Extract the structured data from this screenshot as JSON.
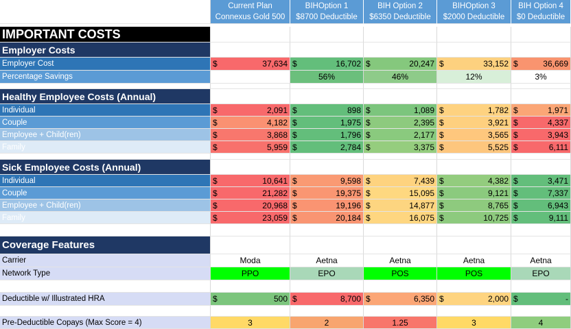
{
  "plans": [
    {
      "line1": "Current Plan",
      "line2": "Connexus Gold 500"
    },
    {
      "line1": "BIHOption 1",
      "line2": "$8700 Deductible"
    },
    {
      "line1": "BIH Option 2",
      "line2": "$6350 Deductible"
    },
    {
      "line1": "BIHOption 3",
      "line2": "$2000 Deductible"
    },
    {
      "line1": "BIH Option 4",
      "line2": "$0 Deductible"
    }
  ],
  "currency_symbol": "$",
  "sections": {
    "important": "IMPORTANT COSTS",
    "employer": "Employer Costs",
    "healthy": "Healthy Employee Costs (Annual)",
    "sick": "Sick Employee Costs (Annual)",
    "coverage": "Coverage Features"
  },
  "employer_cost": {
    "label": "Employer Cost",
    "values": [
      "37,634",
      "16,702",
      "20,247",
      "33,152",
      "36,669"
    ],
    "colors": [
      "#f8696b",
      "#63be7b",
      "#85c87d",
      "#fdd17f",
      "#f9946f"
    ]
  },
  "percentage_savings": {
    "label": "Percentage Savings",
    "values": [
      "",
      "56%",
      "46%",
      "12%",
      "3%"
    ],
    "colors": [
      "#ffffff",
      "#6bbf7c",
      "#8ecb89",
      "#d8efd9",
      "#ffffff"
    ]
  },
  "healthy_rows": [
    {
      "label": "Individual",
      "values": [
        "2,091",
        "898",
        "1,089",
        "1,782",
        "1,971"
      ],
      "colors": [
        "#f8696b",
        "#63be7b",
        "#7cc57d",
        "#fed280",
        "#fba676"
      ]
    },
    {
      "label": "Couple",
      "values": [
        "4,182",
        "1,975",
        "2,395",
        "3,921",
        "4,337"
      ],
      "colors": [
        "#fa9172",
        "#63be7b",
        "#8dca7e",
        "#fed07f",
        "#f8696b"
      ]
    },
    {
      "label": "Employee + Child(ren)",
      "values": [
        "3,868",
        "1,796",
        "2,177",
        "3,565",
        "3,943"
      ],
      "colors": [
        "#f8776d",
        "#63be7b",
        "#8aca7e",
        "#fec77d",
        "#f8696b"
      ]
    },
    {
      "label": "Family",
      "values": [
        "5,959",
        "2,784",
        "3,375",
        "5,525",
        "6,111"
      ],
      "colors": [
        "#f8716c",
        "#63be7b",
        "#95cd7e",
        "#fdc67d",
        "#f8696b"
      ]
    }
  ],
  "sick_rows": [
    {
      "label": "Individual",
      "values": [
        "10,641",
        "9,598",
        "7,439",
        "4,382",
        "3,471"
      ],
      "colors": [
        "#f8696b",
        "#fa9a73",
        "#fed37f",
        "#93cc7e",
        "#63be7b"
      ]
    },
    {
      "label": "Couple",
      "values": [
        "21,282",
        "19,375",
        "15,095",
        "9,121",
        "7,337"
      ],
      "colors": [
        "#f8696b",
        "#fa9672",
        "#fed880",
        "#8bca7e",
        "#63be7b"
      ]
    },
    {
      "label": "Employee + Child(ren)",
      "values": [
        "20,968",
        "19,196",
        "14,877",
        "8,765",
        "6,943"
      ],
      "colors": [
        "#f8696b",
        "#fa9472",
        "#fdd580",
        "#8eca7e",
        "#63be7b"
      ]
    },
    {
      "label": "Family",
      "values": [
        "23,059",
        "20,184",
        "16,075",
        "10,725",
        "9,111"
      ],
      "colors": [
        "#f8696b",
        "#f99572",
        "#fed680",
        "#8dca7e",
        "#63be7b"
      ]
    }
  ],
  "carrier": {
    "label": "Carrier",
    "values": [
      "Moda",
      "Aetna",
      "Aetna",
      "Aetna",
      "Aetna"
    ]
  },
  "network_type": {
    "label": "Network Type",
    "values": [
      "PPO",
      "EPO",
      "POS",
      "POS",
      "EPO"
    ],
    "colors": [
      "#00ff00",
      "#a9d8b8",
      "#00ff00",
      "#00ff00",
      "#a9d8b8"
    ]
  },
  "deductible": {
    "label": "Deductible w/ Illustrated HRA",
    "values": [
      "500",
      "8,700",
      "6,350",
      "2,000",
      "-"
    ],
    "colors": [
      "#7cc57d",
      "#f8696b",
      "#fba676",
      "#fed480",
      "#63be7b"
    ]
  },
  "copays": {
    "label": "Pre-Deductible Copays (Max Score = 4)",
    "values": [
      "3",
      "2",
      "1.25",
      "3",
      "4"
    ],
    "colors": [
      "#ffd966",
      "#f8a56f",
      "#f8766b",
      "#ffd966",
      "#8fcd7e"
    ]
  }
}
